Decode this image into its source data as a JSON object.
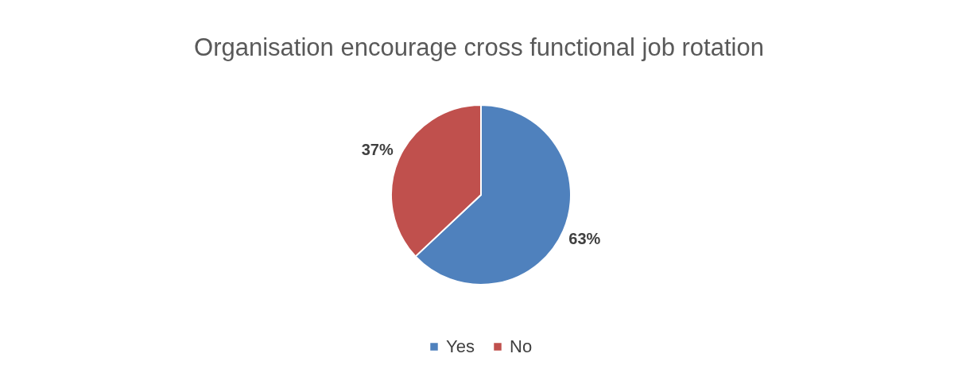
{
  "chart_data": {
    "type": "pie",
    "title": "Organisation encourage cross functional job rotation",
    "categories": [
      "Yes",
      "No"
    ],
    "values": [
      63,
      37
    ],
    "colors": [
      "#4f81bd",
      "#c0504d"
    ],
    "value_labels": [
      "63%",
      "37%"
    ],
    "legend": "bottom"
  }
}
